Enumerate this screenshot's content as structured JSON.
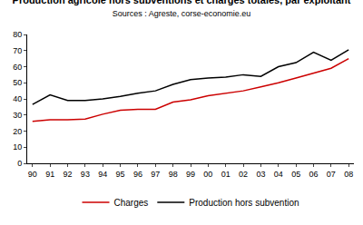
{
  "chart_data": {
    "type": "line",
    "title": "Production agricole hors subventions et charges totales, par exploitant",
    "subtitle": "Sources : Agreste, corse-economie.eu",
    "categories": [
      "90",
      "91",
      "92",
      "93",
      "94",
      "95",
      "96",
      "97",
      "98",
      "99",
      "00",
      "01",
      "02",
      "03",
      "04",
      "05",
      "06",
      "07",
      "08"
    ],
    "series": [
      {
        "name": "Charges",
        "color": "#cc0000",
        "values": [
          26,
          27,
          27,
          27.5,
          30.5,
          33,
          33.5,
          33.5,
          38,
          39.5,
          42,
          43.5,
          45,
          47.5,
          50,
          53,
          56,
          59,
          65
        ]
      },
      {
        "name": "Production hors subvention",
        "color": "#000000",
        "values": [
          36.5,
          42.5,
          39,
          39,
          40,
          41.5,
          43.5,
          45,
          49,
          52,
          53,
          53.5,
          55,
          54,
          60,
          62.5,
          69,
          64,
          70.5
        ]
      }
    ],
    "ylim": [
      0,
      80
    ],
    "yticks": [
      0,
      10,
      20,
      30,
      40,
      50,
      60,
      70,
      80
    ],
    "grid": false,
    "legend": "bottom"
  }
}
